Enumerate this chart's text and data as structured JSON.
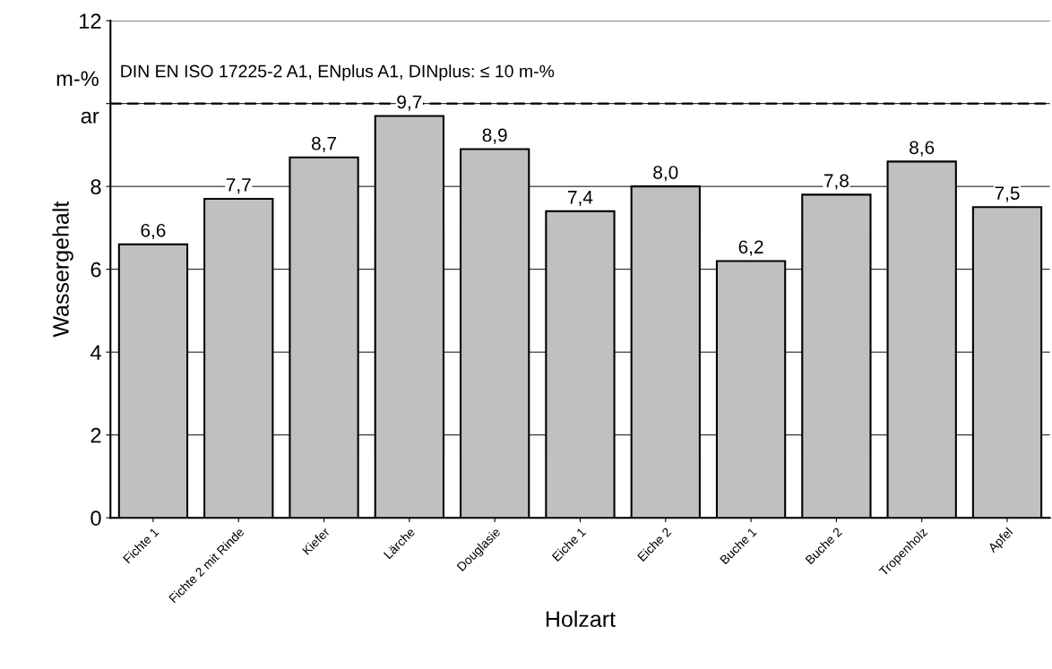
{
  "chart_data": {
    "type": "bar",
    "xlabel": "Holzart",
    "ylabel": "Wassergehalt",
    "categories": [
      "Fichte 1",
      "Fichte 2 mit Rinde",
      "Kiefer",
      "Lärche",
      "Douglasie",
      "Eiche 1",
      "Eiche 2",
      "Buche 1",
      "Buche 2",
      "Tropenholz",
      "Apfel"
    ],
    "values": [
      6.6,
      7.7,
      8.7,
      9.7,
      8.9,
      7.4,
      8.0,
      6.2,
      7.8,
      8.6,
      7.5
    ],
    "value_labels": [
      "6,6",
      "7,7",
      "8,7",
      "9,7",
      "8,9",
      "7,4",
      "8,0",
      "6,2",
      "7,8",
      "8,6",
      "7,5"
    ],
    "color": "#c0c0c0",
    "ylim": [
      0,
      12
    ],
    "yticks": [
      0,
      2,
      4,
      6,
      8,
      {
        "value": 10,
        "label": null
      },
      12
    ],
    "grid": "y",
    "annotations": [
      "m-%",
      "ar"
    ],
    "ref_lines": [
      {
        "axis": "y",
        "value": 10,
        "label": "DIN EN ISO 17225-2 A1, ENplus A1, DINplus: ≤ 10 m-%",
        "color": "#000000",
        "line_style": "dashed"
      }
    ]
  }
}
